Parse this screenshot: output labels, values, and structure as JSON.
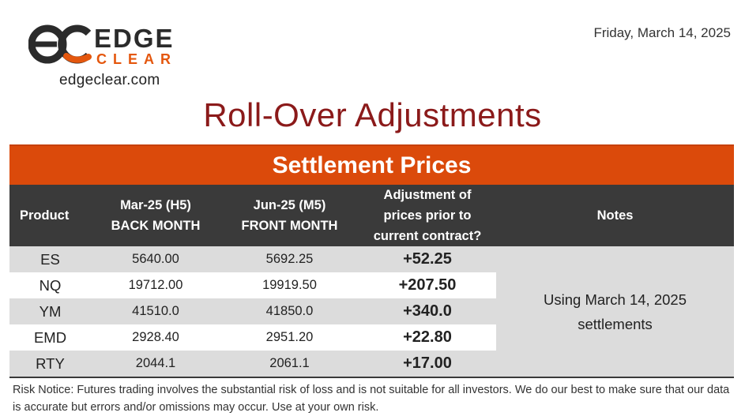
{
  "brand": {
    "logo_word_1": "EDGE",
    "logo_word_2": "CLEAR",
    "website": "edgeclear.com",
    "brand_color": "#e4570e",
    "dark_color": "#2b2b2b"
  },
  "report_date": "Friday, March 14, 2025",
  "page_title": "Roll-Over Adjustments",
  "section_title": "Settlement Prices",
  "columns": {
    "product": "Product",
    "back_line1": "Mar-25 (H5)",
    "back_line2": "BACK MONTH",
    "front_line1": "Jun-25 (M5)",
    "front_line2": "FRONT MONTH",
    "adj_line1": "Adjustment of",
    "adj_line2": "prices prior to",
    "adj_line3": "current contract?",
    "notes": "Notes"
  },
  "rows": [
    {
      "product": "ES",
      "back": "5640.00",
      "front": "5692.25",
      "adjustment": "+52.25"
    },
    {
      "product": "NQ",
      "back": "19712.00",
      "front": "19919.50",
      "adjustment": "+207.50"
    },
    {
      "product": "YM",
      "back": "41510.0",
      "front": "41850.0",
      "adjustment": "+340.0"
    },
    {
      "product": "EMD",
      "back": "2928.40",
      "front": "2951.20",
      "adjustment": "+22.80"
    },
    {
      "product": "RTY",
      "back": "2044.1",
      "front": "2061.1",
      "adjustment": "+17.00"
    }
  ],
  "notes": {
    "line1": "Using March 14, 2025",
    "line2": "settlements"
  },
  "risk_notice": "Risk Notice: Futures trading involves the substantial risk of loss and is not suitable for all investors. We do our best to make sure that our data is accurate but errors and/or omissions may occur. Use at your own risk.",
  "colors": {
    "title": "#8b1a1a",
    "header_band": "#db4a0b",
    "column_header": "#3a3a3a",
    "row_shade": "#dcdcdc"
  }
}
